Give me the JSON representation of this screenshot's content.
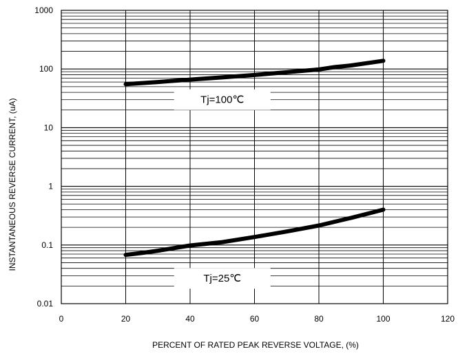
{
  "chart_data": {
    "type": "line",
    "xlabel": "PERCENT OF RATED PEAK REVERSE VOLTAGE, (%)",
    "ylabel": "INSTANTANEOUS REVERSE CURRENT, (uA)",
    "xlim": [
      0,
      120
    ],
    "ylim": [
      0.01,
      1000
    ],
    "yscale": "log",
    "grid": true,
    "x_ticks": [
      "0",
      "20",
      "40",
      "60",
      "80",
      "100",
      "120"
    ],
    "y_ticks": [
      "0.01",
      "0.1",
      "1",
      "10",
      "100",
      "1000"
    ],
    "series": [
      {
        "name": "Tj=100℃",
        "x": [
          20,
          30,
          40,
          50,
          60,
          70,
          80,
          85,
          90,
          100
        ],
        "y": [
          55,
          60,
          66,
          72,
          79,
          88,
          98,
          108,
          115,
          138
        ]
      },
      {
        "name": "Tj=25℃",
        "x": [
          20,
          25,
          30,
          40,
          50,
          60,
          70,
          80,
          90,
          100
        ],
        "y": [
          0.068,
          0.073,
          0.08,
          0.098,
          0.112,
          0.137,
          0.17,
          0.215,
          0.29,
          0.4
        ]
      }
    ],
    "annotations": [
      {
        "text": "Tj=100℃",
        "x": 50,
        "y": 30
      },
      {
        "text": "Tj=25℃",
        "x": 50,
        "y": 0.027
      }
    ]
  }
}
